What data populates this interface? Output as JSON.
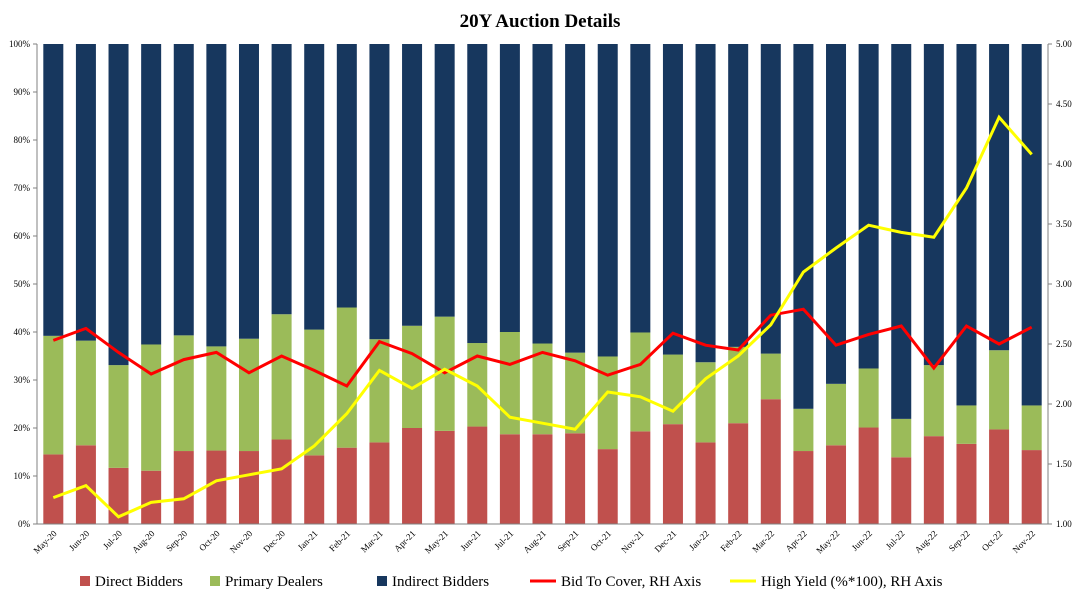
{
  "chart_data": {
    "type": "bar",
    "title": "20Y Auction Details",
    "categories": [
      "May-20",
      "Jun-20",
      "Jul-20",
      "Aug-20",
      "Sep-20",
      "Oct-20",
      "Nov-20",
      "Dec-20",
      "Jan-21",
      "Feb-21",
      "Mar-21",
      "Apr-21",
      "May-21",
      "Jun-21",
      "Jul-21",
      "Aug-21",
      "Sep-21",
      "Oct-21",
      "Nov-21",
      "Dec-21",
      "Jan-22",
      "Feb-22",
      "Mar-22",
      "Apr-22",
      "May-22",
      "Jun-22",
      "Jul-22",
      "Aug-22",
      "Sep-22",
      "Oct-22",
      "Nov-22"
    ],
    "left_axis": {
      "ylim": [
        0,
        100
      ],
      "ticks": [
        "0%",
        "10%",
        "20%",
        "30%",
        "40%",
        "50%",
        "60%",
        "70%",
        "80%",
        "90%",
        "100%"
      ]
    },
    "right_axis": {
      "ylim": [
        1.0,
        5.0
      ],
      "ticks": [
        "1.00",
        "1.50",
        "2.00",
        "2.50",
        "3.00",
        "3.50",
        "4.00",
        "4.50",
        "5.00"
      ]
    },
    "series": [
      {
        "name": "Direct Bidders",
        "type": "bar",
        "axis": "left",
        "color": "#c0504d",
        "values": [
          14.5,
          16.4,
          11.7,
          11.1,
          15.2,
          15.3,
          15.2,
          17.6,
          14.3,
          15.9,
          17.0,
          20.0,
          19.4,
          20.3,
          18.7,
          18.7,
          18.9,
          15.6,
          19.3,
          20.8,
          17.0,
          21.0,
          26.0,
          15.2,
          16.4,
          20.1,
          13.9,
          18.3,
          16.7,
          19.7,
          15.4
        ]
      },
      {
        "name": "Primary Dealers",
        "type": "bar",
        "axis": "left",
        "color": "#9bbb59",
        "values": [
          24.7,
          21.8,
          21.4,
          26.3,
          24.1,
          21.7,
          23.4,
          26.1,
          26.2,
          29.2,
          21.5,
          21.3,
          23.8,
          17.4,
          21.3,
          18.9,
          16.8,
          19.3,
          20.6,
          14.5,
          16.7,
          15.9,
          9.5,
          8.8,
          12.8,
          12.3,
          8.0,
          14.8,
          8.0,
          16.5,
          9.3
        ]
      },
      {
        "name": "Indirect Bidders",
        "type": "bar",
        "axis": "left",
        "color": "#17375e",
        "values": [
          60.8,
          61.8,
          66.9,
          62.6,
          60.7,
          63.0,
          61.4,
          56.3,
          59.5,
          54.9,
          61.5,
          58.7,
          56.8,
          62.3,
          60.0,
          62.4,
          64.3,
          65.1,
          60.1,
          64.7,
          66.3,
          63.1,
          64.5,
          76.0,
          70.8,
          67.6,
          78.1,
          66.9,
          75.3,
          63.8,
          75.3
        ]
      },
      {
        "name": "Bid To Cover, RH Axis",
        "type": "line",
        "axis": "right",
        "color": "#ff0000",
        "values": [
          2.53,
          2.63,
          2.43,
          2.25,
          2.37,
          2.43,
          2.26,
          2.4,
          2.28,
          2.15,
          2.52,
          2.42,
          2.26,
          2.4,
          2.33,
          2.43,
          2.36,
          2.24,
          2.33,
          2.59,
          2.49,
          2.45,
          2.74,
          2.79,
          2.49,
          2.58,
          2.65,
          2.3,
          2.65,
          2.5,
          2.64
        ]
      },
      {
        "name": "High Yield (%*100), RH Axis",
        "type": "line",
        "axis": "right",
        "color": "#ffff00",
        "values": [
          1.22,
          1.32,
          1.06,
          1.18,
          1.21,
          1.36,
          1.41,
          1.46,
          1.65,
          1.92,
          2.28,
          2.13,
          2.29,
          2.15,
          1.89,
          1.84,
          1.79,
          2.1,
          2.06,
          1.94,
          2.21,
          2.4,
          2.66,
          3.1,
          3.3,
          3.49,
          3.43,
          3.39,
          3.8,
          4.39,
          4.08
        ]
      }
    ],
    "legend_position": "bottom",
    "grid": false
  }
}
